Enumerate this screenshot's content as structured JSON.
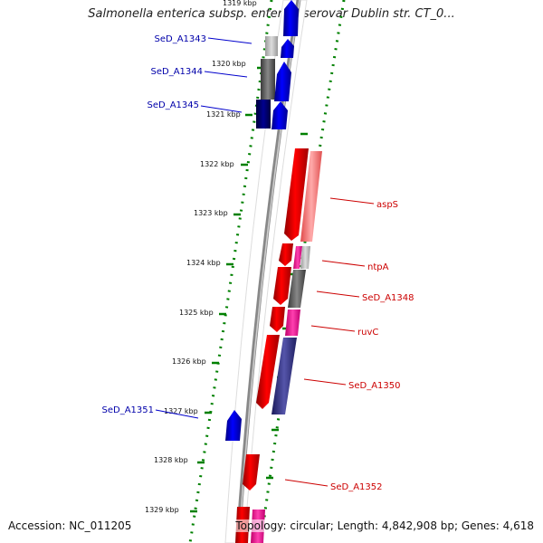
{
  "title": "Salmonella enterica subsp. enterica serovar Dublin str. CT_0...",
  "accession": "Accession: NC_011205",
  "topology": "Topology: circular; Length: 4,842,908 bp; Genes: 4,618",
  "ticks": [
    "1319 kbp",
    "1320 kbp",
    "1321 kbp",
    "1322 kbp",
    "1323 kbp",
    "1324 kbp",
    "1325 kbp",
    "1326 kbp",
    "1327 kbp",
    "1328 kbp",
    "1329 kbp"
  ],
  "left_genes": [
    "SeD_A1343",
    "SeD_A1344",
    "SeD_A1345",
    "SeD_A1351"
  ],
  "right_genes": [
    "aspS",
    "ntpA",
    "SeD_A1348",
    "ruvC",
    "SeD_A1350",
    "SeD_A1352"
  ],
  "colors": {
    "forward_cds": "#0000ee",
    "reverse_cds": "#ee0000",
    "forward_label": "#0000aa",
    "reverse_label": "#cc0000",
    "dotted_track": "#008000",
    "backbone": "#888888"
  }
}
